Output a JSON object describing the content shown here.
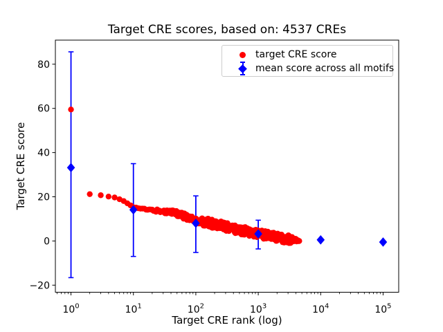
{
  "chart_data": {
    "type": "scatter",
    "title": "Target CRE scores, based on: 4537 CREs",
    "xlabel": "Target CRE rank (log)",
    "ylabel": "Target CRE score",
    "x_scale": "log",
    "x_log_range": [
      -0.25,
      5.25
    ],
    "ylim": [
      -23.2,
      90.9
    ],
    "grid": false,
    "x_ticks": {
      "exponents": [
        0,
        1,
        2,
        3,
        4,
        5
      ],
      "labels": [
        "10⁰",
        "10¹",
        "10²",
        "10³",
        "10⁴",
        "10⁵"
      ]
    },
    "y_ticks": {
      "values": [
        -20,
        0,
        20,
        40,
        60,
        80
      ],
      "labels": [
        "−20",
        "0",
        "20",
        "40",
        "60",
        "80"
      ]
    },
    "legend": {
      "position": "upper right",
      "entries": [
        {
          "label": "target CRE score",
          "marker": "circle",
          "color": "#ff0000"
        },
        {
          "label": "mean score across all motifs",
          "marker": "diamond-errorbar",
          "color": "#0000ff"
        }
      ]
    },
    "series": [
      {
        "name": "target CRE score",
        "type": "dense-scatter",
        "color": "#ff0000",
        "n_points": 4537,
        "first_point": {
          "rank": 1,
          "score": 59.5
        },
        "curve_anchors_log10rank_score": [
          [
            0.301,
            21.2
          ],
          [
            0.477,
            20.7
          ],
          [
            0.602,
            20.1
          ],
          [
            0.72,
            19.6
          ],
          [
            0.85,
            18.0
          ],
          [
            1.0,
            15.3
          ],
          [
            1.2,
            14.2
          ],
          [
            1.635,
            13.0
          ],
          [
            2.0,
            9.4
          ],
          [
            2.35,
            7.3
          ],
          [
            2.7,
            5.0
          ],
          [
            3.0,
            3.3
          ],
          [
            3.3,
            1.6
          ],
          [
            3.5,
            0.7
          ],
          [
            3.657,
            0.1
          ]
        ],
        "last_rank": 4537
      },
      {
        "name": "mean score across all motifs",
        "type": "errorbar-diamond",
        "color": "#0000ff",
        "x_ranks": [
          1,
          10,
          100,
          1000,
          10000,
          100000
        ],
        "y_means": [
          33.2,
          14.1,
          8.0,
          3.2,
          0.5,
          -0.5
        ],
        "y_err_plus": [
          52.4,
          20.9,
          12.4,
          6.2,
          0,
          0
        ],
        "y_err_minus": [
          49.8,
          21.1,
          13.2,
          6.8,
          0,
          0
        ]
      }
    ]
  },
  "colors": {
    "red": "#ff0000",
    "blue": "#0000ff",
    "axes": "#000000",
    "legend_border": "#cccccc",
    "background": "#ffffff"
  }
}
